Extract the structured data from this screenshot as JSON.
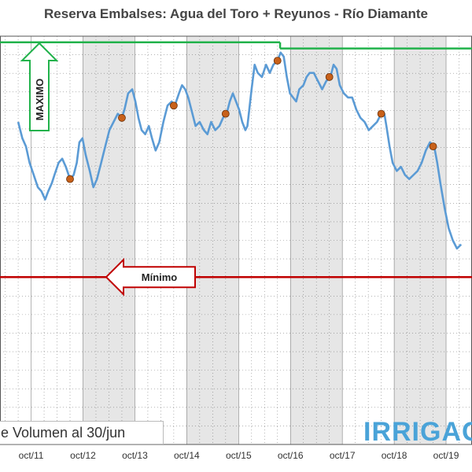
{
  "title": "Reserva Embalses: Agua del Toro + Reyunos - Río Diamante",
  "legend_text": "e Volumen al 30/jun",
  "brand_text": "IRRIGAC",
  "annotations": {
    "maximo": "MAXIMO",
    "minimo": "Mínimo"
  },
  "colors": {
    "series": "#5b9bd5",
    "marker": "#c8611a",
    "maximo": "#21b24b",
    "minimo": "#c00000",
    "band": "#e6e6e6",
    "grid": "#333333"
  },
  "chart_data": {
    "type": "line",
    "title": "Reserva Embalses: Agua del Toro + Reyunos - Río Diamante",
    "xlabel": "",
    "ylabel": "",
    "x_ticks": [
      "oct/11",
      "oct/12",
      "oct/13",
      "oct/14",
      "oct/15",
      "oct/16",
      "oct/17",
      "oct/18",
      "oct/19"
    ],
    "y_range": [
      0,
      1
    ],
    "series": [
      {
        "values": [
          [
            2011.5,
            0.79
          ],
          [
            2011.58,
            0.75
          ],
          [
            2011.65,
            0.73
          ],
          [
            2011.72,
            0.69
          ],
          [
            2011.8,
            0.66
          ],
          [
            2011.88,
            0.63
          ],
          [
            2011.95,
            0.62
          ],
          [
            2012.02,
            0.6
          ],
          [
            2012.08,
            0.62
          ],
          [
            2012.15,
            0.64
          ],
          [
            2012.2,
            0.66
          ],
          [
            2012.28,
            0.69
          ],
          [
            2012.35,
            0.7
          ],
          [
            2012.42,
            0.68
          ],
          [
            2012.5,
            0.65
          ],
          [
            2012.57,
            0.66
          ],
          [
            2012.63,
            0.69
          ],
          [
            2012.68,
            0.74
          ],
          [
            2012.74,
            0.75
          ],
          [
            2012.8,
            0.71
          ],
          [
            2012.88,
            0.67
          ],
          [
            2012.95,
            0.63
          ],
          [
            2013.02,
            0.65
          ],
          [
            2013.1,
            0.69
          ],
          [
            2013.18,
            0.73
          ],
          [
            2013.26,
            0.77
          ],
          [
            2013.34,
            0.79
          ],
          [
            2013.42,
            0.81
          ],
          [
            2013.5,
            0.8
          ],
          [
            2013.55,
            0.82
          ],
          [
            2013.62,
            0.86
          ],
          [
            2013.7,
            0.87
          ],
          [
            2013.76,
            0.84
          ],
          [
            2013.82,
            0.8
          ],
          [
            2013.88,
            0.77
          ],
          [
            2013.95,
            0.76
          ],
          [
            2014.02,
            0.78
          ],
          [
            2014.08,
            0.75
          ],
          [
            2014.15,
            0.72
          ],
          [
            2014.22,
            0.74
          ],
          [
            2014.3,
            0.79
          ],
          [
            2014.38,
            0.83
          ],
          [
            2014.46,
            0.84
          ],
          [
            2014.52,
            0.83
          ],
          [
            2014.6,
            0.86
          ],
          [
            2014.66,
            0.88
          ],
          [
            2014.72,
            0.87
          ],
          [
            2014.78,
            0.85
          ],
          [
            2014.86,
            0.81
          ],
          [
            2014.92,
            0.78
          ],
          [
            2015.0,
            0.79
          ],
          [
            2015.08,
            0.77
          ],
          [
            2015.15,
            0.76
          ],
          [
            2015.22,
            0.79
          ],
          [
            2015.3,
            0.77
          ],
          [
            2015.38,
            0.78
          ],
          [
            2015.45,
            0.8
          ],
          [
            2015.52,
            0.81
          ],
          [
            2015.58,
            0.84
          ],
          [
            2015.64,
            0.86
          ],
          [
            2015.7,
            0.84
          ],
          [
            2015.76,
            0.82
          ],
          [
            2015.82,
            0.79
          ],
          [
            2015.88,
            0.77
          ],
          [
            2015.92,
            0.78
          ],
          [
            2016.0,
            0.87
          ],
          [
            2016.06,
            0.93
          ],
          [
            2016.12,
            0.91
          ],
          [
            2016.2,
            0.9
          ],
          [
            2016.28,
            0.93
          ],
          [
            2016.35,
            0.91
          ],
          [
            2016.42,
            0.93
          ],
          [
            2016.5,
            0.94
          ],
          [
            2016.56,
            0.96
          ],
          [
            2016.62,
            0.95
          ],
          [
            2016.68,
            0.9
          ],
          [
            2016.74,
            0.86
          ],
          [
            2016.8,
            0.85
          ],
          [
            2016.86,
            0.84
          ],
          [
            2016.92,
            0.87
          ],
          [
            2017.0,
            0.88
          ],
          [
            2017.06,
            0.9
          ],
          [
            2017.12,
            0.91
          ],
          [
            2017.2,
            0.91
          ],
          [
            2017.28,
            0.89
          ],
          [
            2017.36,
            0.87
          ],
          [
            2017.44,
            0.89
          ],
          [
            2017.52,
            0.9
          ],
          [
            2017.58,
            0.93
          ],
          [
            2017.64,
            0.92
          ],
          [
            2017.7,
            0.88
          ],
          [
            2017.78,
            0.86
          ],
          [
            2017.86,
            0.85
          ],
          [
            2017.94,
            0.85
          ],
          [
            2018.02,
            0.82
          ],
          [
            2018.1,
            0.8
          ],
          [
            2018.18,
            0.79
          ],
          [
            2018.26,
            0.77
          ],
          [
            2018.34,
            0.78
          ],
          [
            2018.42,
            0.79
          ],
          [
            2018.5,
            0.81
          ],
          [
            2018.56,
            0.81
          ],
          [
            2018.6,
            0.78
          ],
          [
            2018.66,
            0.73
          ],
          [
            2018.72,
            0.69
          ],
          [
            2018.8,
            0.67
          ],
          [
            2018.88,
            0.68
          ],
          [
            2018.96,
            0.66
          ],
          [
            2019.04,
            0.65
          ],
          [
            2019.12,
            0.66
          ],
          [
            2019.2,
            0.67
          ],
          [
            2019.28,
            0.69
          ],
          [
            2019.36,
            0.72
          ],
          [
            2019.44,
            0.74
          ],
          [
            2019.52,
            0.73
          ],
          [
            2019.58,
            0.69
          ],
          [
            2019.64,
            0.64
          ],
          [
            2019.72,
            0.58
          ],
          [
            2019.8,
            0.53
          ],
          [
            2019.88,
            0.5
          ],
          [
            2019.96,
            0.48
          ],
          [
            2020.04,
            0.49
          ]
        ]
      }
    ],
    "markers_30jun": [
      [
        2012.5,
        0.65
      ],
      [
        2013.5,
        0.8
      ],
      [
        2014.5,
        0.83
      ],
      [
        2015.5,
        0.81
      ],
      [
        2016.5,
        0.94
      ],
      [
        2017.5,
        0.9
      ],
      [
        2018.5,
        0.81
      ],
      [
        2019.5,
        0.73
      ]
    ],
    "maximo": {
      "value": 0.97,
      "value_before_2016_5": 0.985
    },
    "minimo": {
      "value": 0.41
    }
  }
}
